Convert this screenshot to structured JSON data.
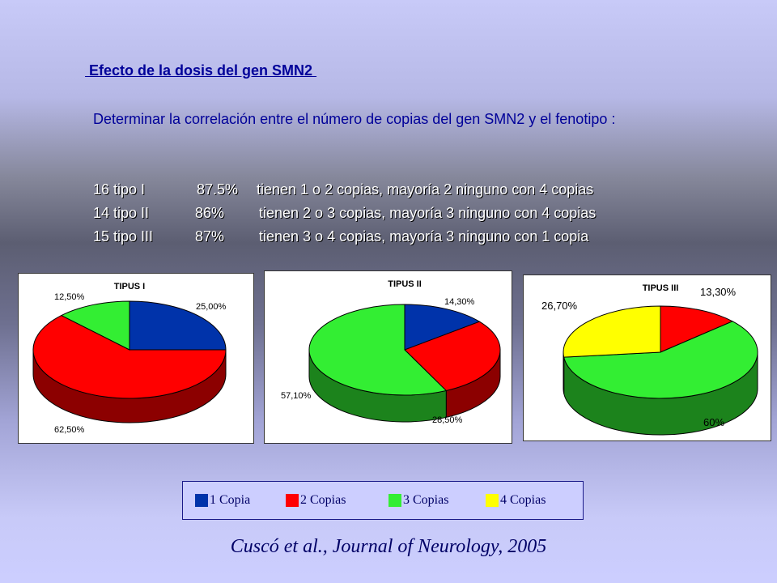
{
  "title": " Efecto de la dosis del gen SMN2 ",
  "intro": "Determinar la correlación entre el número de copias del gen SMN2 y el fenotipo :",
  "facts": [
    {
      "type": "16 tipo I",
      "percent": "87.5%",
      "text": "tienen 1 o 2 copias, mayoría 2 ninguno con 4 copias"
    },
    {
      "type": "14 tipo II",
      "percent": "86%",
      "text": "tienen 2 o 3 copias, mayoría 3 ninguno con 4 copias"
    },
    {
      "type": "15 tipo III",
      "percent": "87%",
      "text": "tienen 3 o 4 copias, mayoría 3 ninguno con 1 copia"
    }
  ],
  "legend": [
    {
      "label": "1 Copia",
      "color": "#0033aa"
    },
    {
      "label": "2 Copias",
      "color": "#ff0000"
    },
    {
      "label": "3 Copias",
      "color": "#33ee33"
    },
    {
      "label": "4 Copias",
      "color": "#ffff00"
    }
  ],
  "citation": "Cuscó et al., Journal of Neurology, 2005",
  "chart_data": [
    {
      "type": "pie",
      "title": "TIPUS I",
      "slices": [
        {
          "category": "1 Copia",
          "value": 25.0,
          "label": "25,00%"
        },
        {
          "category": "2 Copias",
          "value": 62.5,
          "label": "62,50%"
        },
        {
          "category": "3 Copias",
          "value": 12.5,
          "label": "12,50%"
        }
      ]
    },
    {
      "type": "pie",
      "title": "TIPUS II",
      "slices": [
        {
          "category": "1 Copia",
          "value": 14.3,
          "label": "14,30%"
        },
        {
          "category": "2 Copias",
          "value": 28.5,
          "label": "28,50%"
        },
        {
          "category": "3 Copias",
          "value": 57.1,
          "label": "57,10%"
        }
      ]
    },
    {
      "type": "pie",
      "title": "TIPUS III",
      "slices": [
        {
          "category": "2 Copias",
          "value": 13.3,
          "label": "13,30%"
        },
        {
          "category": "3 Copias",
          "value": 60.0,
          "label": "60%"
        },
        {
          "category": "4 Copias",
          "value": 26.7,
          "label": "26,70%"
        }
      ]
    }
  ]
}
